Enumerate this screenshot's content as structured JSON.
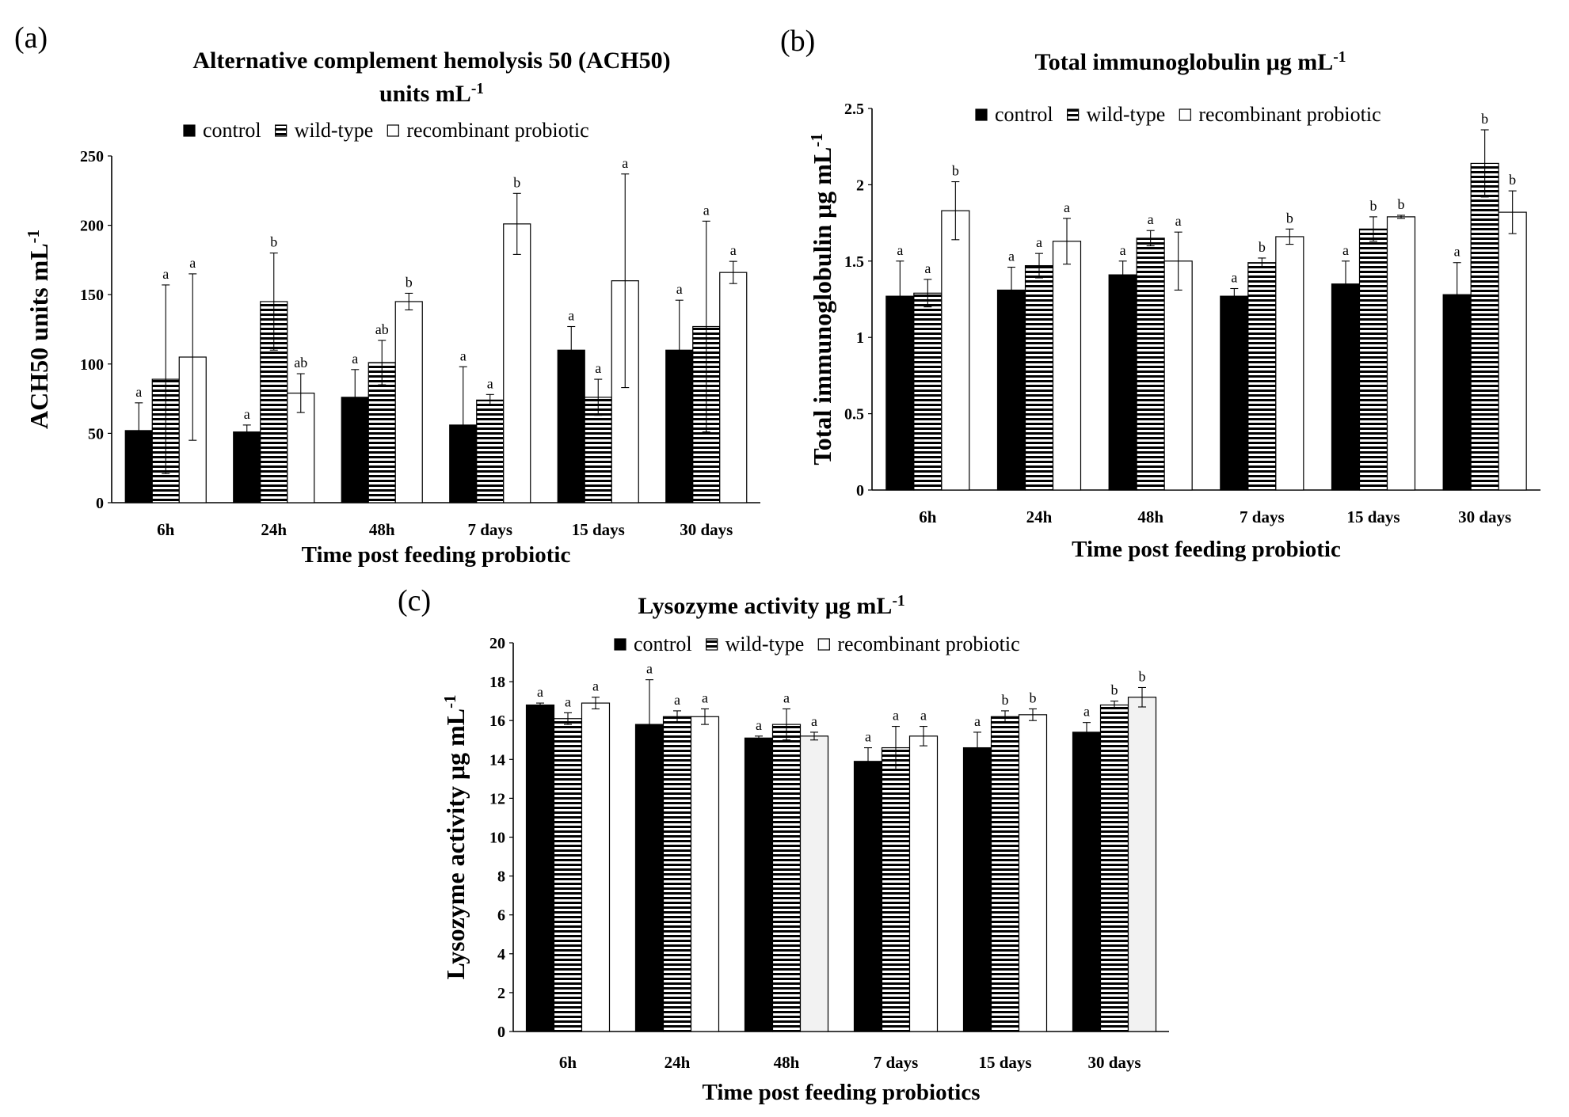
{
  "colors": {
    "control": "#000000",
    "wild": "#000000",
    "recombinant": "#ffffff",
    "recombinant_alt": "#f2f2f2",
    "axis": "#000000"
  },
  "chart_data": [
    {
      "id": "a",
      "type": "bar",
      "panel_label": "(a)",
      "title": [
        "Alternative complement hemolysis 50 (ACH50)",
        "units mL"
      ],
      "title_sup": "-1",
      "legend": [
        "control",
        "wild-type",
        "recombinant probiotic"
      ],
      "ylabel": "ACH50 units mL",
      "ylabel_sup": "-1",
      "xlabel": "Time post feeding probiotic",
      "categories": [
        "6h",
        "24h",
        "48h",
        "7 days",
        "15 days",
        "30 days"
      ],
      "ylim": [
        0,
        250
      ],
      "yticks": [
        "0",
        "50",
        "100",
        "150",
        "200",
        "250"
      ],
      "series": [
        {
          "name": "control",
          "values": [
            52,
            51,
            76,
            56,
            110,
            110
          ],
          "errors": [
            20,
            5,
            20,
            42,
            17,
            36
          ],
          "letters": [
            "a",
            "a",
            "a",
            "a",
            "a",
            "a"
          ]
        },
        {
          "name": "wild-type",
          "values": [
            89,
            145,
            101,
            74,
            76,
            127
          ],
          "errors": [
            68,
            35,
            16,
            4,
            13,
            76
          ],
          "letters": [
            "a",
            "b",
            "ab",
            "a",
            "a",
            "a"
          ]
        },
        {
          "name": "recombinant probiotic",
          "values": [
            105,
            79,
            145,
            201,
            160,
            166
          ],
          "errors": [
            60,
            14,
            6,
            22,
            77,
            8
          ],
          "letters": [
            "a",
            "ab",
            "b",
            "b",
            "a",
            "a"
          ]
        }
      ]
    },
    {
      "id": "b",
      "type": "bar",
      "panel_label": "(b)",
      "title": [
        "Total immunoglobulin μg mL"
      ],
      "title_sup": "-1",
      "legend": [
        "control",
        "wild-type",
        "recombinant probiotic"
      ],
      "ylabel": "Total immunoglobulin μg mL",
      "ylabel_sup": "-1",
      "xlabel": "Time post feeding probiotic",
      "categories": [
        "6h",
        "24h",
        "48h",
        "7 days",
        "15 days",
        "30 days"
      ],
      "ylim": [
        0,
        2.5
      ],
      "yticks": [
        "0",
        "0.5",
        "1",
        "1.5",
        "2",
        "2.5"
      ],
      "series": [
        {
          "name": "control",
          "values": [
            1.27,
            1.31,
            1.41,
            1.27,
            1.35,
            1.28
          ],
          "errors": [
            0.23,
            0.15,
            0.09,
            0.05,
            0.15,
            0.21
          ],
          "letters": [
            "a",
            "a",
            "a",
            "a",
            "a",
            "a"
          ]
        },
        {
          "name": "wild-type",
          "values": [
            1.29,
            1.47,
            1.65,
            1.49,
            1.71,
            2.14
          ],
          "errors": [
            0.09,
            0.08,
            0.05,
            0.03,
            0.08,
            0.22
          ],
          "letters": [
            "a",
            "a",
            "a",
            "b",
            "b",
            "b"
          ]
        },
        {
          "name": "recombinant probiotic",
          "values": [
            1.83,
            1.63,
            1.5,
            1.66,
            1.79,
            1.82
          ],
          "errors": [
            0.19,
            0.15,
            0.19,
            0.05,
            0.01,
            0.14
          ],
          "letters": [
            "b",
            "a",
            "a",
            "b",
            "b",
            "b"
          ]
        }
      ]
    },
    {
      "id": "c",
      "type": "bar",
      "panel_label": "(c)",
      "title": [
        "Lysozyme activity μg mL"
      ],
      "title_sup": "-1",
      "legend": [
        "control",
        "wild-type",
        "recombinant probiotic"
      ],
      "ylabel": "Lysozyme activity μg mL",
      "ylabel_sup": "-1",
      "xlabel": "Time post feeding probiotics",
      "categories": [
        "6h",
        "24h",
        "48h",
        "7 days",
        "15 days",
        "30 days"
      ],
      "ylim": [
        0,
        20
      ],
      "yticks": [
        "0",
        "2",
        "4",
        "6",
        "8",
        "10",
        "12",
        "14",
        "16",
        "18",
        "20"
      ],
      "series": [
        {
          "name": "control",
          "values": [
            16.8,
            15.8,
            15.1,
            13.9,
            14.6,
            15.4
          ],
          "errors": [
            0.1,
            2.3,
            0.1,
            0.7,
            0.8,
            0.5
          ],
          "letters": [
            "a",
            "a",
            "a",
            "a",
            "a",
            "a"
          ]
        },
        {
          "name": "wild-type",
          "values": [
            16.1,
            16.2,
            15.8,
            14.6,
            16.2,
            16.8
          ],
          "errors": [
            0.3,
            0.3,
            0.8,
            1.1,
            0.3,
            0.2
          ],
          "letters": [
            "a",
            "a",
            "a",
            "a",
            "b",
            "b"
          ]
        },
        {
          "name": "recombinant probiotic",
          "values": [
            16.9,
            16.2,
            15.2,
            15.2,
            16.3,
            17.2
          ],
          "errors": [
            0.3,
            0.4,
            0.2,
            0.5,
            0.3,
            0.5
          ],
          "letters": [
            "a",
            "a",
            "a",
            "a",
            "b",
            "b"
          ]
        }
      ]
    }
  ]
}
